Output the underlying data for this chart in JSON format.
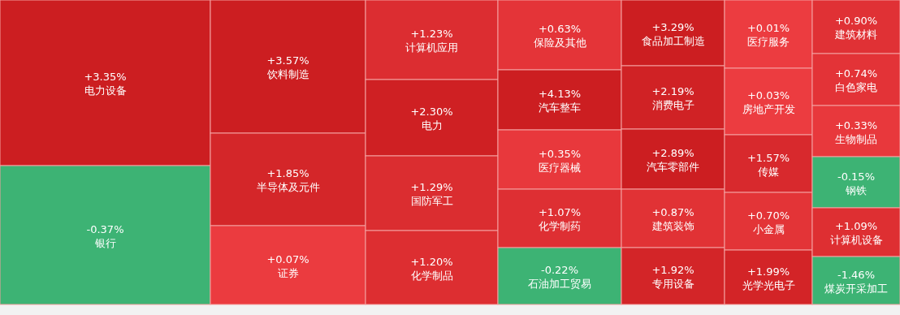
{
  "chart_data": {
    "type": "other",
    "categories": [
      "电力设备",
      "银行",
      "饮料制造",
      "半导体及元件",
      "证券",
      "计算机应用",
      "电力",
      "国防军工",
      "化学制品",
      "保险及其他",
      "汽车整车",
      "医疗器械",
      "化学制药",
      "石油加工贸易",
      "食品加工制造",
      "消费电子",
      "汽车零部件",
      "建筑装饰",
      "专用设备",
      "医疗服务",
      "房地产开发",
      "传媒",
      "小金属",
      "光学光电子",
      "建筑材料",
      "白色家电",
      "生物制品",
      "钢铁",
      "计算机设备",
      "煤炭开采加工"
    ],
    "values": [
      3.35,
      -0.37,
      3.57,
      1.85,
      0.07,
      1.23,
      2.3,
      1.29,
      1.2,
      0.63,
      4.13,
      0.35,
      1.07,
      -0.22,
      3.29,
      2.19,
      2.89,
      0.87,
      1.92,
      0.01,
      0.03,
      1.57,
      0.7,
      1.99,
      0.9,
      0.74,
      0.33,
      -0.15,
      1.09,
      -1.46
    ],
    "value_labels": [
      "+3.35%",
      "-0.37%",
      "+3.57%",
      "+1.85%",
      "+0.07%",
      "+1.23%",
      "+2.30%",
      "+1.29%",
      "+1.20%",
      "+0.63%",
      "+4.13%",
      "+0.35%",
      "+1.07%",
      "-0.22%",
      "+3.29%",
      "+2.19%",
      "+2.89%",
      "+0.87%",
      "+1.92%",
      "+0.01%",
      "+0.03%",
      "+1.57%",
      "+0.70%",
      "+1.99%",
      "+0.90%",
      "+0.74%",
      "+0.33%",
      "-0.15%",
      "+1.09%",
      "-1.46%"
    ]
  }
}
